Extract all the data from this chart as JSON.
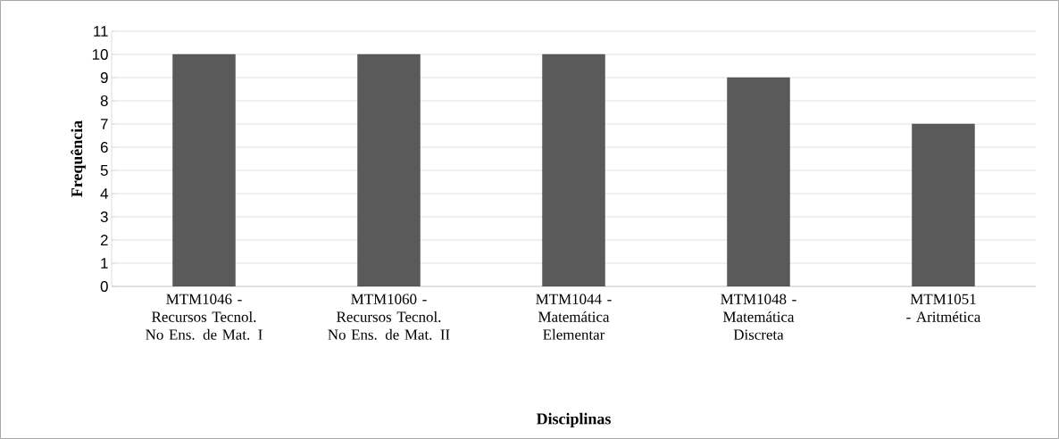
{
  "chart_data": {
    "type": "bar",
    "xlabel": "Disciplinas",
    "ylabel": "Frequência",
    "categories": [
      "MTM1046 - Recursos Tecnol. No Ens. de Mat. I",
      "MTM1060 - Recursos Tecnol. No Ens. de Mat. II",
      "MTM1044 - Matemática Elementar",
      "MTM1048 - Matemática Discreta",
      "MTM1051 - Aritmética"
    ],
    "values": [
      10,
      10,
      10,
      9,
      7
    ],
    "color": "#5a5a5a",
    "ylim": [
      0,
      11
    ],
    "yticks": [
      0,
      1,
      2,
      3,
      4,
      5,
      6,
      7,
      8,
      9,
      10,
      11
    ],
    "grid": "y"
  }
}
